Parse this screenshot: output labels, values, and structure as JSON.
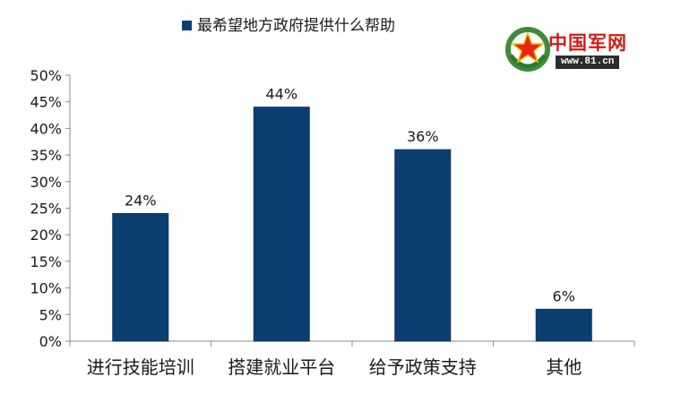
{
  "watermark": {
    "site_name": "中国军网",
    "url": "www.81.cn"
  },
  "chart_data": {
    "type": "bar",
    "title": "",
    "xlabel": "",
    "ylabel": "",
    "categories": [
      "进行技能培训",
      "搭建就业平台",
      "给予政策支持",
      "其他"
    ],
    "series": [
      {
        "name": "最希望地方政府提供什么帮助",
        "values": [
          24,
          44,
          36,
          6
        ]
      }
    ],
    "ylim": [
      0,
      50
    ],
    "yticks": [
      0,
      5,
      10,
      15,
      20,
      25,
      30,
      35,
      40,
      45,
      50
    ],
    "tick_suffix": "%",
    "data_labels": [
      "24%",
      "44%",
      "36%",
      "6%"
    ],
    "legend_position": "top",
    "grid": false,
    "bar_color": "#0c3e70"
  }
}
